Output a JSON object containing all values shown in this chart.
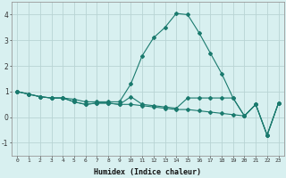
{
  "xlabel": "Humidex (Indice chaleur)",
  "x": [
    0,
    1,
    2,
    3,
    4,
    5,
    6,
    7,
    8,
    9,
    10,
    11,
    12,
    13,
    14,
    15,
    16,
    17,
    18,
    19,
    20,
    21,
    22,
    23
  ],
  "series1": [
    1.0,
    0.9,
    0.8,
    0.75,
    0.75,
    0.7,
    0.6,
    0.6,
    0.6,
    0.6,
    1.3,
    2.4,
    3.1,
    3.5,
    4.05,
    4.0,
    3.3,
    2.5,
    1.7,
    0.75,
    0.05,
    0.5,
    -0.7,
    0.55
  ],
  "series2": [
    1.0,
    0.9,
    0.8,
    0.75,
    0.75,
    0.6,
    0.5,
    0.55,
    0.55,
    0.5,
    0.8,
    0.5,
    0.45,
    0.4,
    0.35,
    0.75,
    0.75,
    0.75,
    0.75,
    0.75,
    0.05,
    0.5,
    -0.7,
    0.55
  ],
  "series3": [
    1.0,
    0.9,
    0.8,
    0.75,
    0.75,
    0.6,
    0.5,
    0.55,
    0.55,
    0.5,
    0.5,
    0.45,
    0.4,
    0.35,
    0.3,
    0.3,
    0.25,
    0.2,
    0.15,
    0.1,
    0.05,
    0.5,
    -0.7,
    0.55
  ],
  "line_color": "#1a7a6e",
  "bg_color": "#d8f0f0",
  "grid_color": "#b8d4d4",
  "ylim": [
    -1.5,
    4.5
  ],
  "xlim": [
    -0.5,
    23.5
  ],
  "yticks": [
    -1,
    0,
    1,
    2,
    3,
    4
  ],
  "xticks": [
    0,
    1,
    2,
    3,
    4,
    5,
    6,
    7,
    8,
    9,
    10,
    11,
    12,
    13,
    14,
    15,
    16,
    17,
    18,
    19,
    20,
    21,
    22,
    23
  ]
}
